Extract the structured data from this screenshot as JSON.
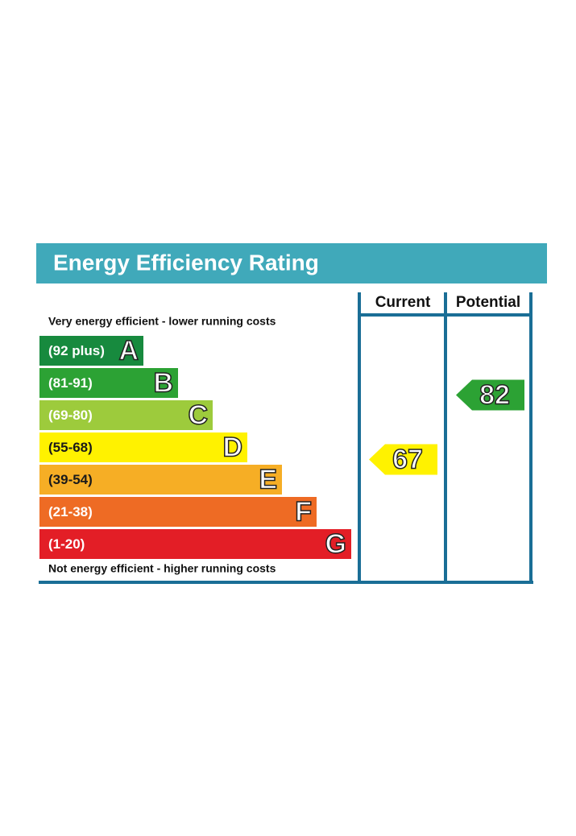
{
  "header": {
    "title": "Energy Efficiency Rating"
  },
  "columns": [
    "Current",
    "Potential"
  ],
  "top_note": "Very energy efficient - lower running costs",
  "bottom_note": "Not energy efficient - higher running costs",
  "bands": [
    {
      "range": "(92 plus)",
      "letter": "A",
      "color": "#178a3e",
      "text_color": "#ffffff"
    },
    {
      "range": "(81-91)",
      "letter": "B",
      "color": "#2ca234",
      "text_color": "#ffffff"
    },
    {
      "range": "(69-80)",
      "letter": "C",
      "color": "#9dcb3c",
      "text_color": "#ffffff"
    },
    {
      "range": "(55-68)",
      "letter": "D",
      "color": "#fff200",
      "text_color": "#1a1a1a"
    },
    {
      "range": "(39-54)",
      "letter": "E",
      "color": "#f6ae25",
      "text_color": "#1a1a1a"
    },
    {
      "range": "(21-38)",
      "letter": "F",
      "color": "#ee6b24",
      "text_color": "#ffffff"
    },
    {
      "range": "(1-20)",
      "letter": "G",
      "color": "#e31e26",
      "text_color": "#ffffff"
    }
  ],
  "ratings": {
    "current": 67,
    "potential": 82
  }
}
